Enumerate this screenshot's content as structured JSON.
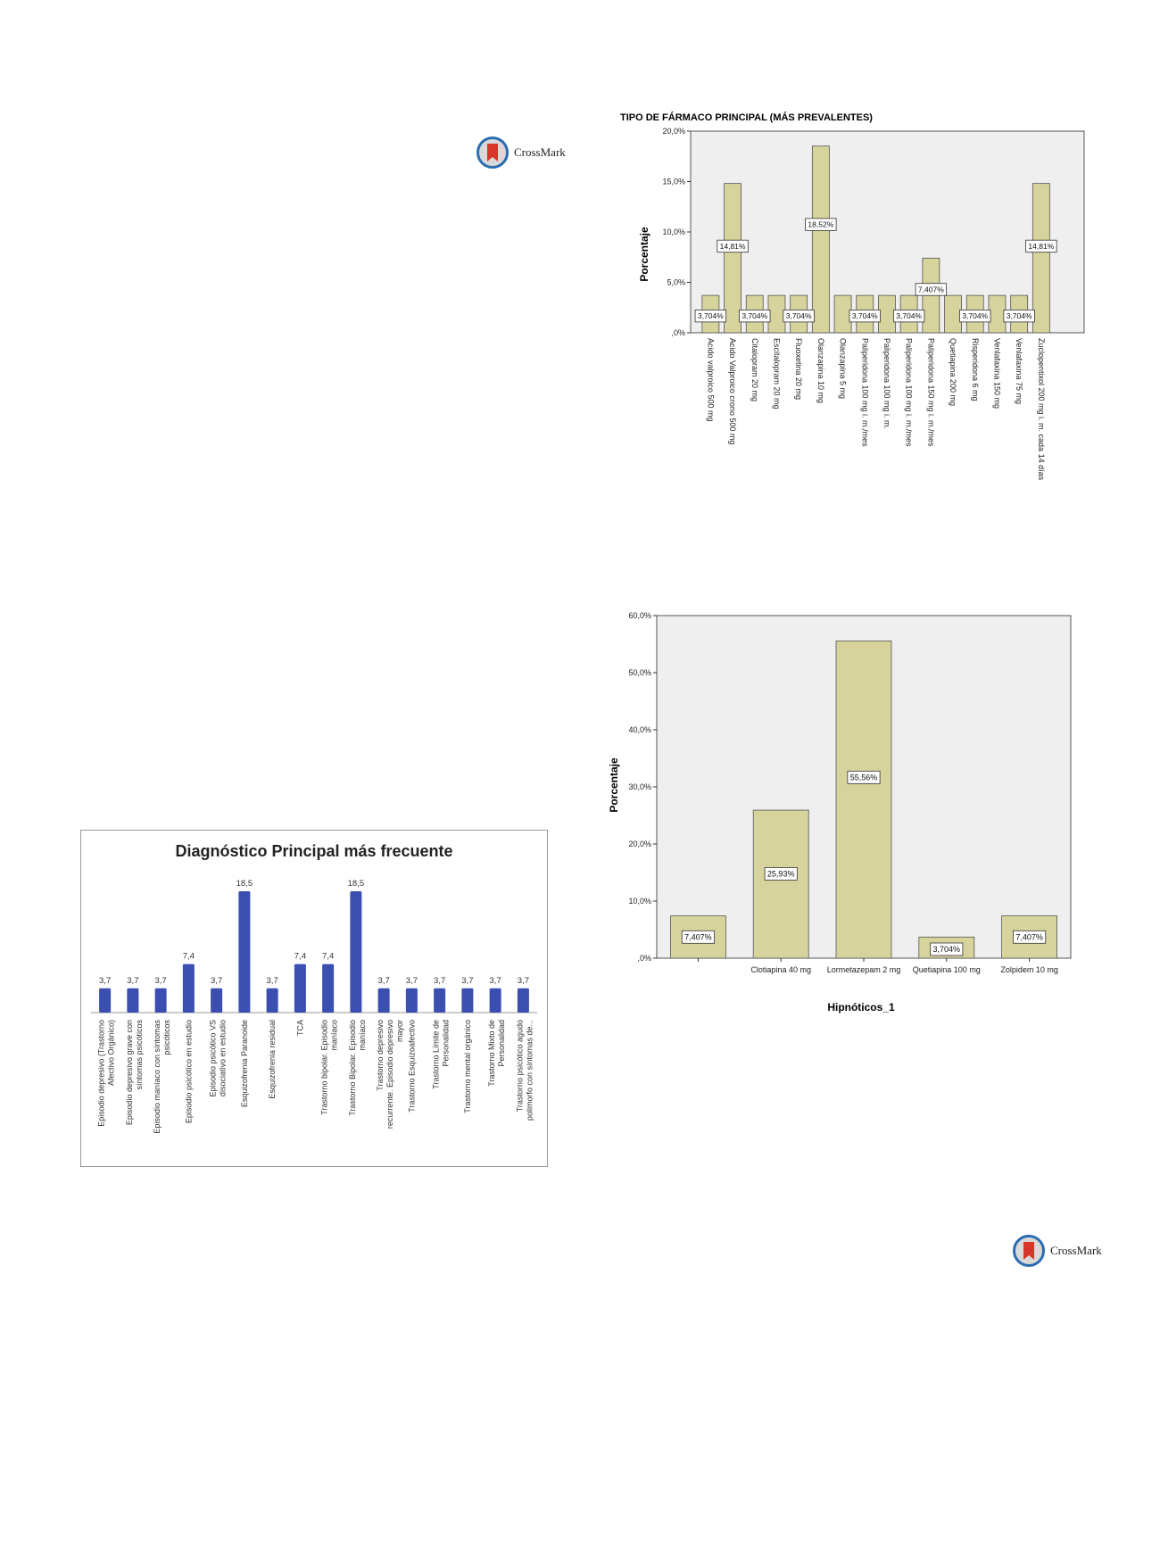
{
  "crossmark": {
    "label": "CrossMark"
  },
  "chart_data": [
    {
      "id": "farmaco",
      "type": "bar",
      "title": "TIPO DE FÁRMACO PRINCIPAL (MÁS PREVALENTES)",
      "ylabel": "Porcentaje",
      "xlabel": "",
      "ylim": [
        0,
        20
      ],
      "yticks": [
        0,
        5,
        10,
        15,
        20
      ],
      "ytick_labels": [
        ",0%",
        "5,0%",
        "10,0%",
        "15,0%",
        "20,0%"
      ],
      "categories": [
        "Acido valproico 500 mg",
        "Acido Valproico crono 500 mg",
        "Citalopram 20 mg",
        "Escitalopram 20 mg",
        "Fluoxetina 20 mg",
        "Olanzapina 10 mg",
        "Olanzapina 5 mg",
        "Paliperidona 100  mg i. m./mes",
        "Paliperidona 100 mg i. m.",
        "Paliperidona 100 mg i. m./mes",
        "Paliperidona 150  mg i. m./mes",
        "Quetiapina 200 mg",
        "Risperidona 6 mg",
        "Venlafaxina 150 mg",
        "Venlafaxina 75 mg",
        "Zuclopentixol  200 mg i. m.  cada 14 días"
      ],
      "values": [
        3.704,
        14.81,
        3.704,
        3.704,
        3.704,
        18.52,
        3.704,
        3.704,
        3.704,
        3.704,
        7.407,
        3.704,
        3.704,
        3.704,
        3.704,
        14.81
      ],
      "data_labels": [
        "3,704%",
        "14,81%",
        "3,704%",
        "",
        "3,704%",
        "18,52%",
        "",
        "3,704%",
        "",
        "3,704%",
        "7,407%",
        "",
        "3,704%",
        "",
        "3,704%",
        "14,81%"
      ],
      "bar_color": "#d6d39c",
      "plot_bg": "#efefef"
    },
    {
      "id": "diagnostico",
      "type": "bar",
      "title": "Diagnóstico Principal más frecuente",
      "xlabel": "",
      "ylabel": "",
      "ylim": [
        0,
        20
      ],
      "categories": [
        "Episodio depresivo (Trastorno Afectivo Orgánico)",
        "Episodio depresivo grave con síntomas psicóticos",
        "Episodio maníaco con síntomas psicóticos",
        "Episodio psicótico en estudio",
        "Episodio psicótico VS disociativo en estudio",
        "Esquizofrenia Paranoide",
        "Esquizofrenia residual",
        "TCA",
        "Trastorno bipolar. Episodio maníaco",
        "Trastorno Bipolar. Episodio maníaco",
        "Trastorno depresivo recurrente. Episodio depresivo mayor",
        "Trastorno Esquizoafectivo",
        "Trastorno Límite de Personalidad",
        "Trastorno mental orgánico",
        "Trastorno Mixto de Personalidad",
        "Trastorno psicótico agudo polimorfo con síntomas de..."
      ],
      "values": [
        3.7,
        3.7,
        3.7,
        7.4,
        3.7,
        18.5,
        3.7,
        7.4,
        7.4,
        18.5,
        3.7,
        3.7,
        3.7,
        3.7,
        3.7,
        3.7
      ],
      "data_labels": [
        "3,7",
        "3,7",
        "3,7",
        "7,4",
        "3,7",
        "18,5",
        "3,7",
        "7,4",
        "7,4",
        "18,5",
        "3,7",
        "3,7",
        "3,7",
        "3,7",
        "3,7",
        "3,7"
      ],
      "bar_color": "#3a4fb0"
    },
    {
      "id": "hipnoticos",
      "type": "bar",
      "title": "",
      "ylabel": "Porcentaje",
      "xlabel": "Hipnóticos_1",
      "ylim": [
        0,
        60
      ],
      "yticks": [
        0,
        10,
        20,
        30,
        40,
        50,
        60
      ],
      "ytick_labels": [
        ",0%",
        "10,0%",
        "20,0%",
        "30,0%",
        "40,0%",
        "50,0%",
        "60,0%"
      ],
      "categories": [
        "",
        "Clotiapina 40 mg",
        "Lormetazepam 2 mg",
        "Quetiapina 100 mg",
        "Zolpidem 10 mg"
      ],
      "values": [
        7.407,
        25.93,
        55.56,
        3.704,
        7.407
      ],
      "data_labels": [
        "7,407%",
        "25,93%",
        "55,56%",
        "3,704%",
        "7,407%"
      ],
      "bar_color": "#d6d39c",
      "plot_bg": "#efefef"
    }
  ]
}
